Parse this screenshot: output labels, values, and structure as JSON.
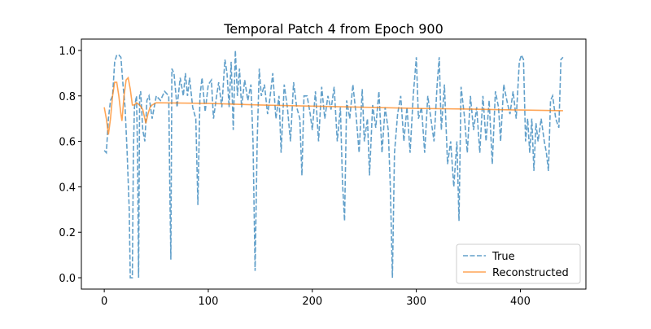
{
  "chart_data": {
    "type": "line",
    "title": "Temporal Patch 4 from Epoch 900",
    "xlim": [
      -22,
      463
    ],
    "xticks": [
      0,
      100,
      200,
      300,
      400
    ],
    "ylim": [
      -0.05,
      1.05
    ],
    "yticks": [
      {
        "value": 0,
        "label": "0.0"
      },
      {
        "value": 0.2,
        "label": "0.2"
      },
      {
        "value": 0.4,
        "label": "0.4"
      },
      {
        "value": 0.6,
        "label": "0.6"
      },
      {
        "value": 0.8,
        "label": "0.8"
      },
      {
        "value": 1,
        "label": "1.0"
      }
    ],
    "legend": "lower right",
    "series": [
      {
        "name": "True",
        "color": "#1f77b4",
        "dash": "dashed",
        "x": [
          0,
          2,
          4,
          6,
          8,
          10,
          12,
          14,
          16,
          18,
          20,
          22,
          24,
          25,
          27,
          28,
          29,
          31,
          32,
          33,
          34,
          35,
          37,
          39,
          41,
          43,
          46,
          50,
          54,
          58,
          62,
          63,
          64,
          65,
          67,
          70,
          73,
          76,
          78,
          80,
          82,
          85,
          88,
          90,
          92,
          94,
          97,
          100,
          103,
          105,
          108,
          110,
          113,
          116,
          118,
          120,
          122,
          124,
          126,
          128,
          130,
          132,
          135,
          138,
          141,
          143,
          145,
          147,
          149,
          151,
          154,
          157,
          159,
          162,
          165,
          168,
          170,
          173,
          176,
          179,
          182,
          185,
          188,
          190,
          192,
          195,
          198,
          200,
          203,
          206,
          209,
          212,
          215,
          218,
          221,
          224,
          227,
          229,
          231,
          233,
          236,
          239,
          242,
          245,
          248,
          250,
          253,
          255,
          258,
          261,
          264,
          267,
          270,
          273,
          275,
          277,
          279,
          282,
          285,
          288,
          291,
          294,
          297,
          300,
          302,
          305,
          308,
          311,
          314,
          317,
          320,
          322,
          324,
          327,
          330,
          333,
          336,
          339,
          341,
          343,
          346,
          349,
          352,
          355,
          358,
          361,
          364,
          367,
          370,
          373,
          376,
          379,
          381,
          384,
          387,
          390,
          393,
          396,
          399,
          401,
          403,
          405,
          407,
          409,
          411,
          413,
          415,
          417,
          420,
          423,
          425,
          427,
          429,
          431,
          434,
          437,
          439,
          441
        ],
        "values": [
          0.56,
          0.55,
          0.7,
          0.78,
          0.8,
          0.95,
          0.98,
          0.98,
          0.97,
          0.85,
          0.75,
          0.55,
          0.3,
          0.0,
          0.0,
          0.55,
          0.75,
          0.8,
          0.55,
          0.0,
          0.8,
          0.82,
          0.65,
          0.6,
          0.78,
          0.8,
          0.7,
          0.8,
          0.78,
          0.82,
          0.8,
          0.4,
          0.08,
          0.92,
          0.9,
          0.75,
          0.88,
          0.8,
          0.9,
          0.8,
          0.88,
          0.75,
          0.7,
          0.32,
          0.8,
          0.88,
          0.73,
          0.85,
          0.87,
          0.7,
          0.8,
          0.86,
          0.75,
          0.96,
          0.9,
          0.75,
          0.95,
          0.65,
          1.0,
          0.8,
          0.92,
          0.75,
          0.87,
          0.78,
          0.85,
          0.6,
          0.03,
          0.6,
          0.92,
          0.8,
          0.85,
          0.72,
          0.78,
          0.9,
          0.7,
          0.8,
          0.55,
          0.85,
          0.75,
          0.6,
          0.86,
          0.75,
          0.7,
          0.45,
          0.8,
          0.8,
          0.72,
          0.65,
          0.82,
          0.6,
          0.84,
          0.7,
          0.8,
          0.74,
          0.84,
          0.6,
          0.75,
          0.42,
          0.25,
          0.78,
          0.7,
          0.85,
          0.72,
          0.55,
          0.83,
          0.6,
          0.7,
          0.45,
          0.76,
          0.66,
          0.82,
          0.55,
          0.75,
          0.65,
          0.4,
          0.0,
          0.55,
          0.72,
          0.8,
          0.6,
          0.75,
          0.55,
          0.8,
          0.97,
          0.7,
          0.75,
          0.55,
          0.8,
          0.7,
          0.6,
          0.85,
          0.97,
          0.65,
          0.85,
          0.5,
          0.6,
          0.4,
          0.6,
          0.25,
          0.84,
          0.72,
          0.55,
          0.8,
          0.65,
          0.75,
          0.55,
          0.8,
          0.6,
          0.78,
          0.5,
          0.82,
          0.75,
          0.6,
          0.85,
          0.78,
          0.72,
          0.82,
          0.7,
          0.95,
          0.98,
          0.96,
          0.6,
          0.7,
          0.55,
          0.7,
          0.47,
          0.68,
          0.6,
          0.7,
          0.6,
          0.55,
          0.47,
          0.78,
          0.8,
          0.7,
          0.66,
          0.96,
          0.97
        ]
      },
      {
        "name": "Reconstructed",
        "color": "#ff7f0e",
        "dash": "solid",
        "x": [
          0,
          2,
          4,
          6,
          8,
          10,
          12,
          14,
          16,
          17,
          19,
          21,
          23,
          25,
          27,
          29,
          31,
          34,
          37,
          39,
          40,
          42,
          44,
          46,
          50,
          100,
          150,
          200,
          250,
          300,
          350,
          400,
          441
        ],
        "values": [
          0.75,
          0.7,
          0.63,
          0.7,
          0.8,
          0.86,
          0.86,
          0.8,
          0.72,
          0.69,
          0.8,
          0.87,
          0.88,
          0.83,
          0.76,
          0.76,
          0.77,
          0.76,
          0.74,
          0.7,
          0.68,
          0.72,
          0.75,
          0.76,
          0.77,
          0.767,
          0.76,
          0.755,
          0.75,
          0.745,
          0.742,
          0.738,
          0.735
        ]
      }
    ]
  }
}
